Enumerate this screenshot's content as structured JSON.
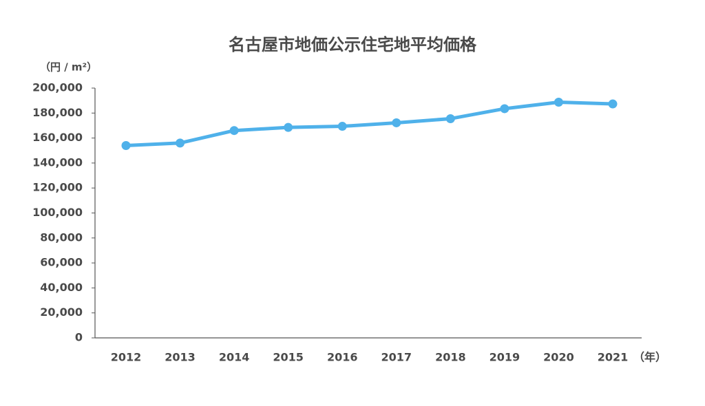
{
  "chart_data": {
    "type": "line",
    "title": "名古屋市地価公示住宅地平均価格",
    "y_label": "（円 / m²）",
    "x_label": "（年）",
    "categories": [
      "2012",
      "2013",
      "2014",
      "2015",
      "2016",
      "2017",
      "2018",
      "2019",
      "2020",
      "2021"
    ],
    "series": [
      {
        "name": "名古屋市地価公示住宅地平均価格",
        "color": "#4fb1ea",
        "values": [
          154000,
          156000,
          166000,
          168500,
          169400,
          172200,
          175500,
          183500,
          188700,
          187300
        ]
      }
    ],
    "ylim": [
      0,
      200000
    ],
    "yticks": [
      0,
      {
        "value": 20000,
        "label": "20,000"
      },
      {
        "value": 40000,
        "label": "40,000"
      },
      {
        "value": 60000,
        "label": "60,000"
      },
      {
        "value": 80000,
        "label": "80,000"
      },
      {
        "value": 100000,
        "label": "100,000"
      },
      {
        "value": 120000,
        "label": "120,000"
      },
      {
        "value": 140000,
        "label": "140,000"
      },
      {
        "value": 160000,
        "label": "160,000"
      },
      {
        "value": 180000,
        "label": "180,000"
      },
      {
        "value": 200000,
        "label": "200,000"
      }
    ],
    "grid": false
  }
}
